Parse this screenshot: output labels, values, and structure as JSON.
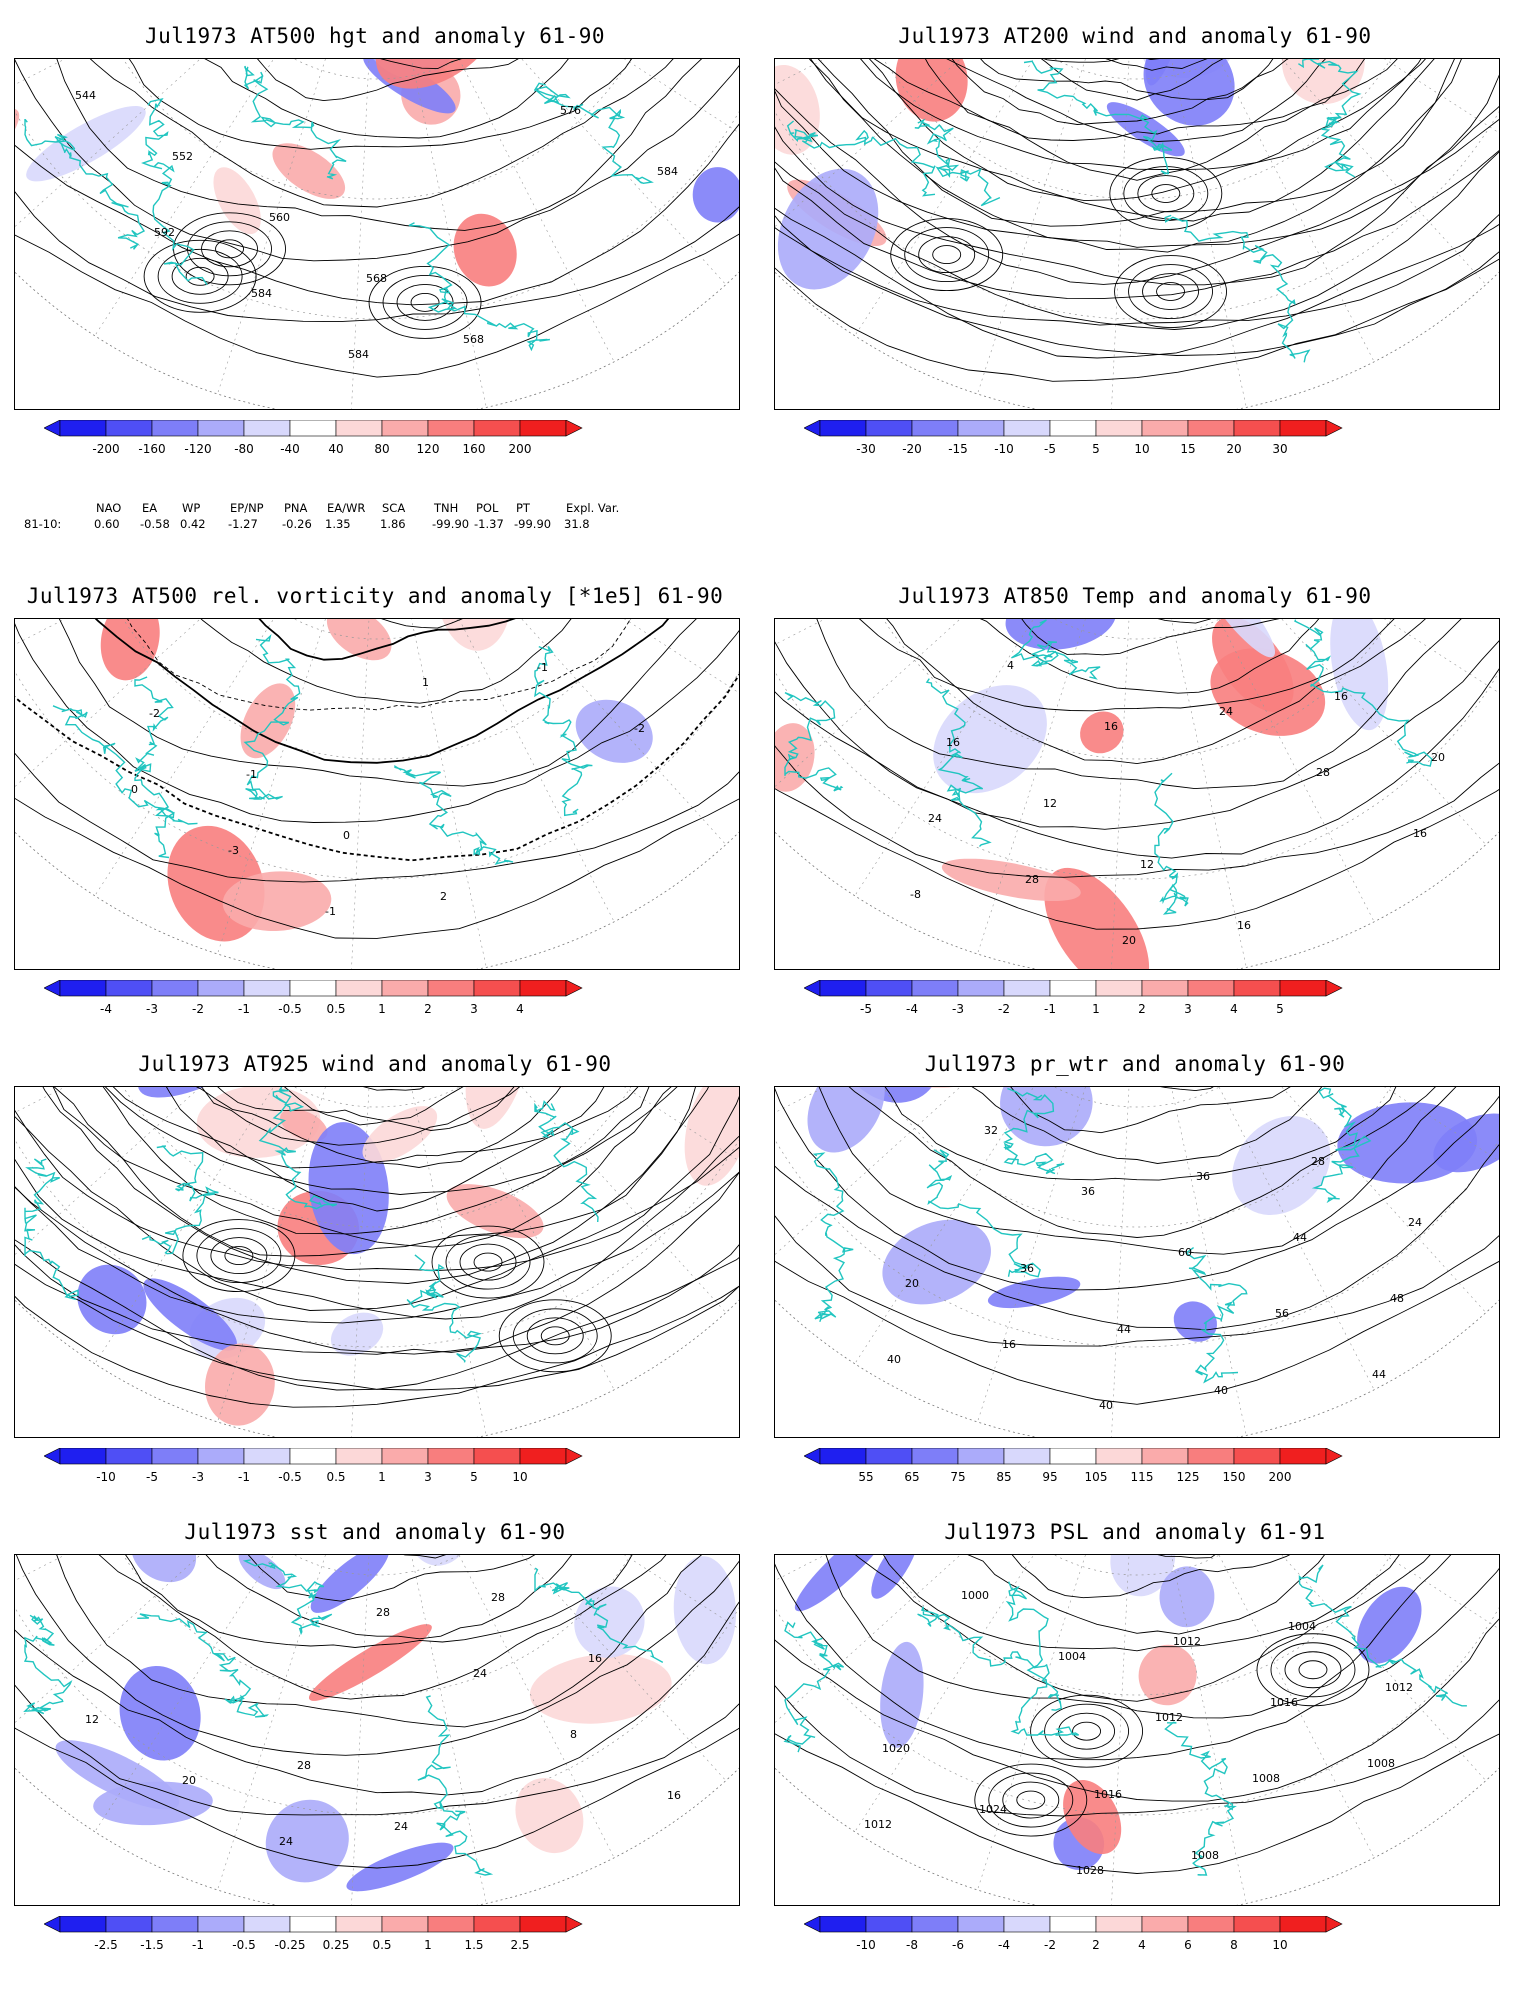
{
  "panels": [
    {
      "id": "p1",
      "title": "Jul1973 AT500 hgt and anomaly 61-90",
      "colorbar": [
        "-200",
        "-160",
        "-120",
        "-80",
        "-40",
        "40",
        "80",
        "120",
        "160",
        "200"
      ],
      "contour_labels": [
        "544",
        "552",
        "560",
        "568",
        "568",
        "576",
        "584",
        "592",
        "584",
        "584"
      ],
      "colors": {
        "neg": [
          "#1f1ff0",
          "#4f4ff5",
          "#7e7ef8",
          "#ababfa",
          "#d8d8fc"
        ],
        "pos": [
          "#fcd8d8",
          "#faabab",
          "#f87e7e",
          "#f54f4f",
          "#f01f1f"
        ]
      }
    },
    {
      "id": "p2",
      "title": "Jul1973 AT200 wind and anomaly 61-90",
      "colorbar": [
        "-30",
        "-20",
        "-15",
        "-10",
        "-5",
        "5",
        "10",
        "15",
        "20",
        "30"
      ],
      "contour_labels": []
    },
    {
      "id": "p3",
      "title": "Jul1973 AT500 rel. vorticity and anomaly [*1e5] 61-90",
      "colorbar": [
        "-4",
        "-3",
        "-2",
        "-1",
        "-0.5",
        "0.5",
        "1",
        "2",
        "3",
        "4"
      ],
      "contour_labels": [
        "-2",
        "-1",
        "0",
        "2",
        "-1",
        "-2",
        "0",
        "-3",
        "-1",
        "1"
      ]
    },
    {
      "id": "p4",
      "title": "Jul1973 AT850 Temp and anomaly 61-90",
      "colorbar": [
        "-5",
        "-4",
        "-3",
        "-2",
        "-1",
        "1",
        "2",
        "3",
        "4",
        "5"
      ],
      "contour_labels": [
        "16",
        "12",
        "12",
        "16",
        "16",
        "20",
        "24",
        "28",
        "20",
        "24",
        "28",
        "16",
        "-8",
        "4",
        "16"
      ]
    },
    {
      "id": "p5",
      "title": "Jul1973 AT925 wind and anomaly 61-90",
      "colorbar": [
        "-10",
        "-5",
        "-3",
        "-1",
        "-0.5",
        "0.5",
        "1",
        "3",
        "5",
        "10"
      ],
      "contour_labels": []
    },
    {
      "id": "p6",
      "title": "Jul1973 pr_wtr and anomaly 61-90",
      "colorbar": [
        "55",
        "65",
        "75",
        "85",
        "95",
        "105",
        "115",
        "125",
        "150",
        "200"
      ],
      "contour_labels": [
        "36",
        "44",
        "40",
        "28",
        "24",
        "20",
        "16",
        "40",
        "36",
        "44",
        "48",
        "40",
        "32",
        "36",
        "60",
        "56",
        "44"
      ]
    },
    {
      "id": "p7",
      "title": "Jul1973 sst and anomaly 61-90",
      "colorbar": [
        "-2.5",
        "-1.5",
        "-1",
        "-0.5",
        "-0.25",
        "0.25",
        "0.5",
        "1",
        "1.5",
        "2.5"
      ],
      "contour_labels": [
        "28",
        "24",
        "28",
        "16",
        "12",
        "20",
        "24",
        "28",
        "24",
        "8",
        "16"
      ]
    },
    {
      "id": "p8",
      "title": "Jul1973 PSL and anomaly 61-91",
      "colorbar": [
        "-10",
        "-8",
        "-6",
        "-4",
        "-2",
        "2",
        "4",
        "6",
        "8",
        "10"
      ],
      "contour_labels": [
        "1016",
        "1008",
        "1004",
        "1012",
        "1020",
        "1024",
        "1028",
        "1012",
        "1016",
        "1008",
        "1012",
        "1000",
        "1004",
        "1012",
        "1008"
      ]
    }
  ],
  "indices": {
    "headers": [
      "NAO",
      "EA",
      "WP",
      "EP/NP",
      "PNA",
      "EA/WR",
      "SCA",
      "TNH",
      "POL",
      "PT",
      "Expl. Var."
    ],
    "row_label": "81-10:",
    "values": [
      "0.60",
      "-0.58",
      "0.42",
      "-1.27",
      "-0.26",
      "1.35",
      "1.86",
      "-99.90",
      "-1.37",
      "-99.90",
      "31.8"
    ]
  }
}
